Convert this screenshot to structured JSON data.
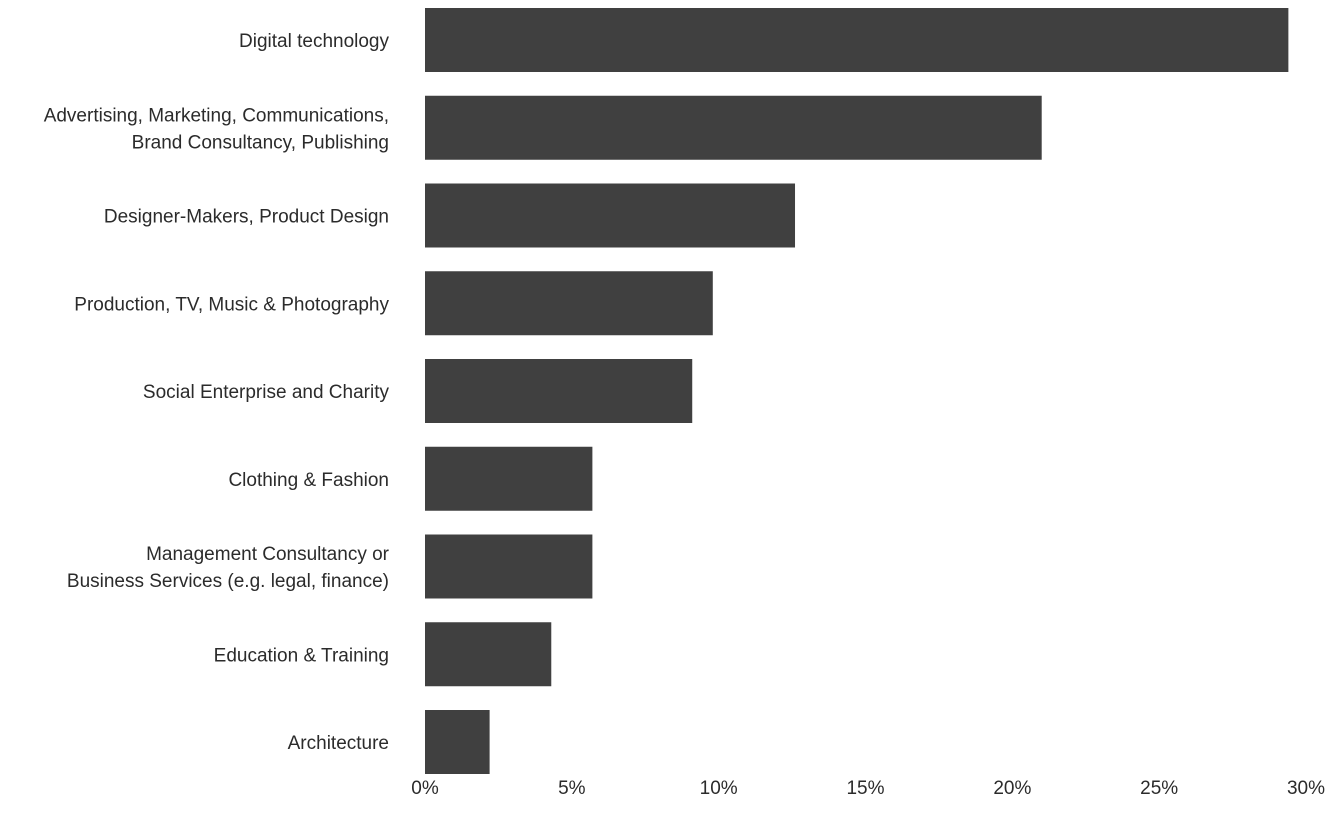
{
  "chart_data": {
    "type": "bar",
    "orientation": "horizontal",
    "title": "",
    "xlabel": "",
    "ylabel": "",
    "categories": [
      [
        "Digital technology"
      ],
      [
        "Advertising, Marketing, Communications,",
        "Brand Consultancy, Publishing"
      ],
      [
        "Designer-Makers, Product Design"
      ],
      [
        "Production, TV, Music & Photography"
      ],
      [
        "Social Enterprise and Charity"
      ],
      [
        "Clothing & Fashion"
      ],
      [
        "Management Consultancy or",
        "Business Services (e.g. legal, finance)"
      ],
      [
        "Education & Training"
      ],
      [
        "Architecture"
      ]
    ],
    "values": [
      29.4,
      21.0,
      12.6,
      9.8,
      9.1,
      5.7,
      5.7,
      4.3,
      2.2
    ],
    "unit": "%",
    "xlim": [
      0,
      30
    ],
    "xticks": [
      0,
      5,
      10,
      15,
      20,
      25,
      30
    ],
    "xtick_labels": [
      "0%",
      "5%",
      "10%",
      "15%",
      "20%",
      "25%",
      "30%"
    ],
    "bar_color": "#404040",
    "text_color": "#2b2b2b",
    "grid": false,
    "legend": "none"
  }
}
